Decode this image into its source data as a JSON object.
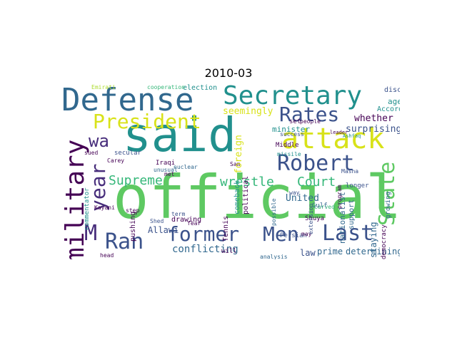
{
  "title": "2010-03",
  "words": {
    "said": "said",
    "official": "official",
    "defense": "Defense",
    "secretary": "Secretary",
    "attack": "attack",
    "military": "military",
    "president": "President",
    "rates": "Rates",
    "robert": "Robert",
    "former": "former",
    "men": "Men",
    "last": "Last",
    "ran": "Ran",
    "year": "year",
    "wa": "wa",
    "m": "M",
    "state": "State",
    "supreme": "Supreme",
    "wrestle": "wrestle",
    "court": "Court",
    "seemingly": "seemingly",
    "minister": "minister",
    "whether": "whether",
    "surprising": "surprising",
    "conflicting": "conflicting",
    "allawi": "Allawi",
    "law": "law",
    "prime": "prime",
    "determining": "determining",
    "staying": "staying",
    "united": "United",
    "tennis": "Tennis",
    "foreign": "foreign",
    "comeback": "comeback",
    "political": "political",
    "nationalist": "nationalist",
    "support": "support",
    "agenda": "agenda",
    "according": "According",
    "discus": "discus",
    "election": "election",
    "cooperation": "cooperation",
    "emirati": "Emirati",
    "people": "people",
    "success": "success",
    "middle": "Middle",
    "missile": "missile",
    "carved": "Carved",
    "masha": "Masha",
    "longer": "longer",
    "shuya": "Shuya",
    "gulf": "Gulf",
    "democracy": "democracy",
    "drawing": "drawing",
    "pushing": "pushing",
    "kayani": "Kayani",
    "step": "step",
    "shed": "Shed",
    "commentator": "commentator",
    "secular": "secular",
    "sued": "sued",
    "nuclear": "nuclear",
    "unusual": "unusual",
    "iraqi": "Iraqi",
    "analysis": "analysis",
    "persian": "Persian",
    "growing": "growing",
    "program": "program",
    "extension": "extension",
    "possible": "possible",
    "head": "head",
    "will": "will",
    "met": "met",
    "fear": "fear",
    "term": "term",
    "leader": "leader",
    "ashfaq": "Ashfaq",
    "set": "set",
    "may": "may",
    "sam": "Sam",
    "carey": "Carey",
    "way": "way"
  },
  "colors": {
    "teal": "#21908d",
    "darkblue": "#31688e",
    "purple": "#440154",
    "indigo": "#3b528b",
    "green": "#5ec962",
    "lime": "#addc30",
    "yellow": "#d8e219",
    "seagreen": "#35b779",
    "navy": "#472d7b"
  }
}
